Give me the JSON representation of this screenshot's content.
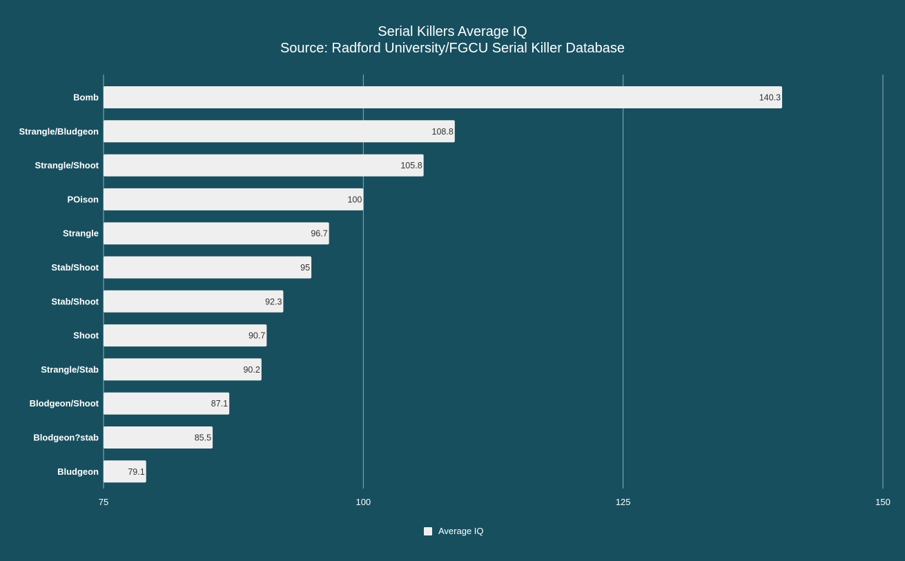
{
  "chart_data": {
    "type": "bar",
    "orientation": "horizontal",
    "title": "Serial Killers Average IQ",
    "subtitle": "Source: Radford University/FGCU Serial Killer Database",
    "categories": [
      "Bomb",
      "Strangle/Bludgeon",
      "Strangle/Shoot",
      "POison",
      "Strangle",
      "Stab/Shoot",
      "Stab/Shoot",
      "Shoot",
      "Strangle/Stab",
      "Blodgeon/Shoot",
      "Blodgeon?stab",
      "Bludgeon"
    ],
    "series": [
      {
        "name": "Average IQ",
        "values": [
          140.3,
          108.8,
          105.8,
          100,
          96.7,
          95,
          92.3,
          90.7,
          90.2,
          87.1,
          85.5,
          79.1
        ],
        "value_labels": [
          "140.3",
          "108.8",
          "105.8",
          "100",
          "96.7",
          "95",
          "92.3",
          "90.7",
          "90.2",
          "87.1",
          "85.5",
          "79.1"
        ],
        "color": "#efefef"
      }
    ],
    "xlim": [
      75,
      150
    ],
    "xticks": [
      "75",
      "100",
      "125",
      "150"
    ],
    "grid": true,
    "legend_position": "bottom",
    "background_color": "#174f5f",
    "grid_color": "#8fb0b8"
  }
}
